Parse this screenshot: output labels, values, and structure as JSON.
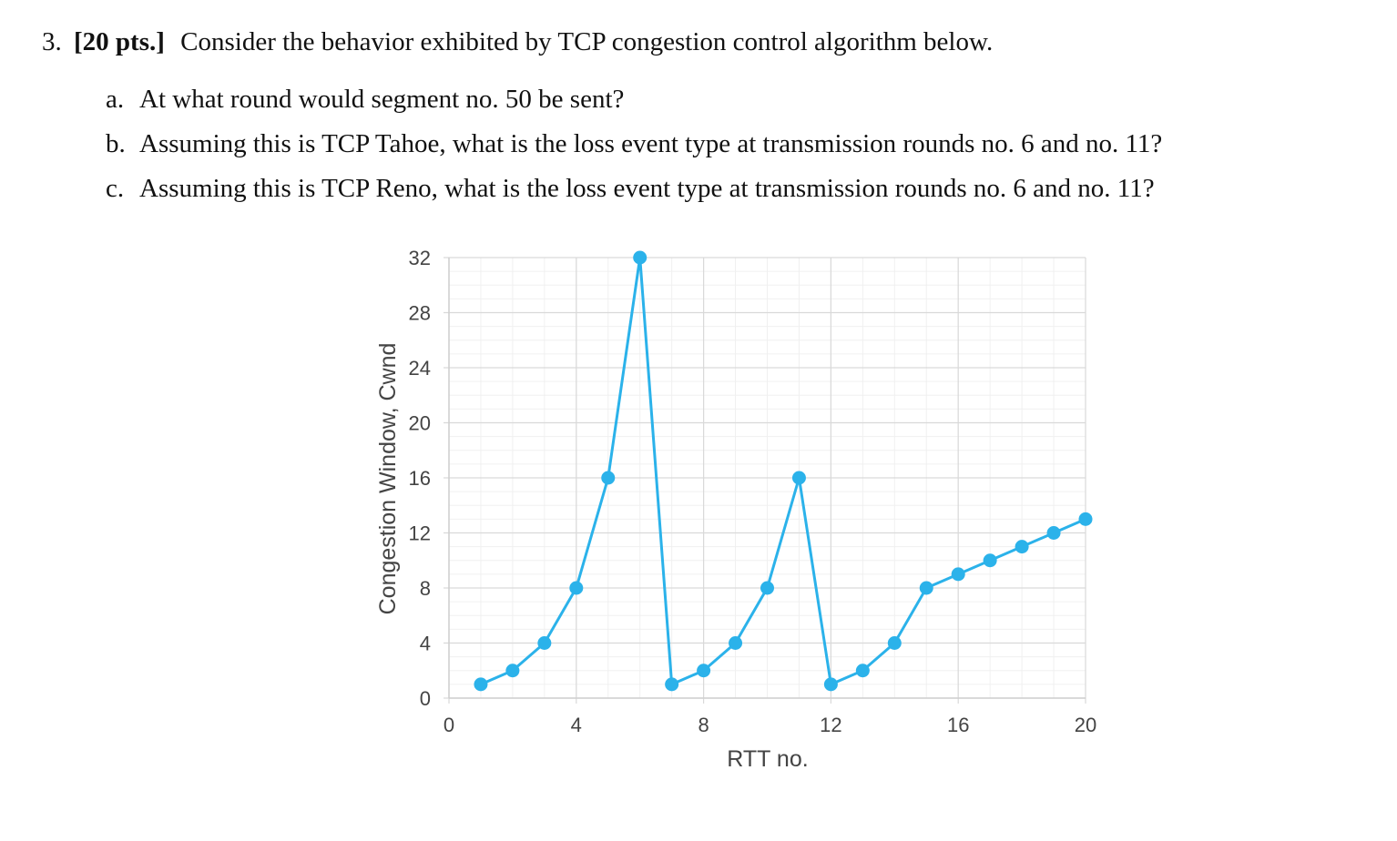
{
  "question": {
    "number": "3.",
    "points": "[20 pts.]",
    "text": "Consider the behavior exhibited by TCP congestion control algorithm below.",
    "parts": [
      {
        "letter": "a.",
        "text": "At what round would segment no. 50 be sent?"
      },
      {
        "letter": "b.",
        "text": "Assuming this is TCP Tahoe, what is the loss event type at transmission rounds no. 6 and no. 11?"
      },
      {
        "letter": "c.",
        "text": "Assuming this is TCP Reno, what is the loss event type at transmission rounds no. 6 and no. 11?"
      }
    ]
  },
  "chart_data": {
    "type": "line",
    "xlabel": "RTT no.",
    "ylabel": "Congestion Window, Cwnd",
    "xlim": [
      0,
      20
    ],
    "ylim": [
      0,
      32
    ],
    "xticks": [
      "0",
      "4",
      "8",
      "12",
      "16",
      "20"
    ],
    "yticks": [
      "0",
      "4",
      "8",
      "12",
      "16",
      "20",
      "24",
      "28",
      "32"
    ],
    "grid": true,
    "series": [
      {
        "color": "#2bb2ea",
        "points": [
          [
            1,
            1
          ],
          [
            2,
            2
          ],
          [
            3,
            4
          ],
          [
            4,
            8
          ],
          [
            5,
            16
          ],
          [
            6,
            32
          ],
          [
            7,
            1
          ],
          [
            8,
            2
          ],
          [
            9,
            4
          ],
          [
            10,
            8
          ],
          [
            11,
            16
          ],
          [
            12,
            1
          ],
          [
            13,
            2
          ],
          [
            14,
            4
          ],
          [
            15,
            8
          ],
          [
            16,
            9
          ],
          [
            17,
            10
          ],
          [
            18,
            11
          ],
          [
            19,
            12
          ],
          [
            20,
            13
          ]
        ]
      }
    ]
  }
}
